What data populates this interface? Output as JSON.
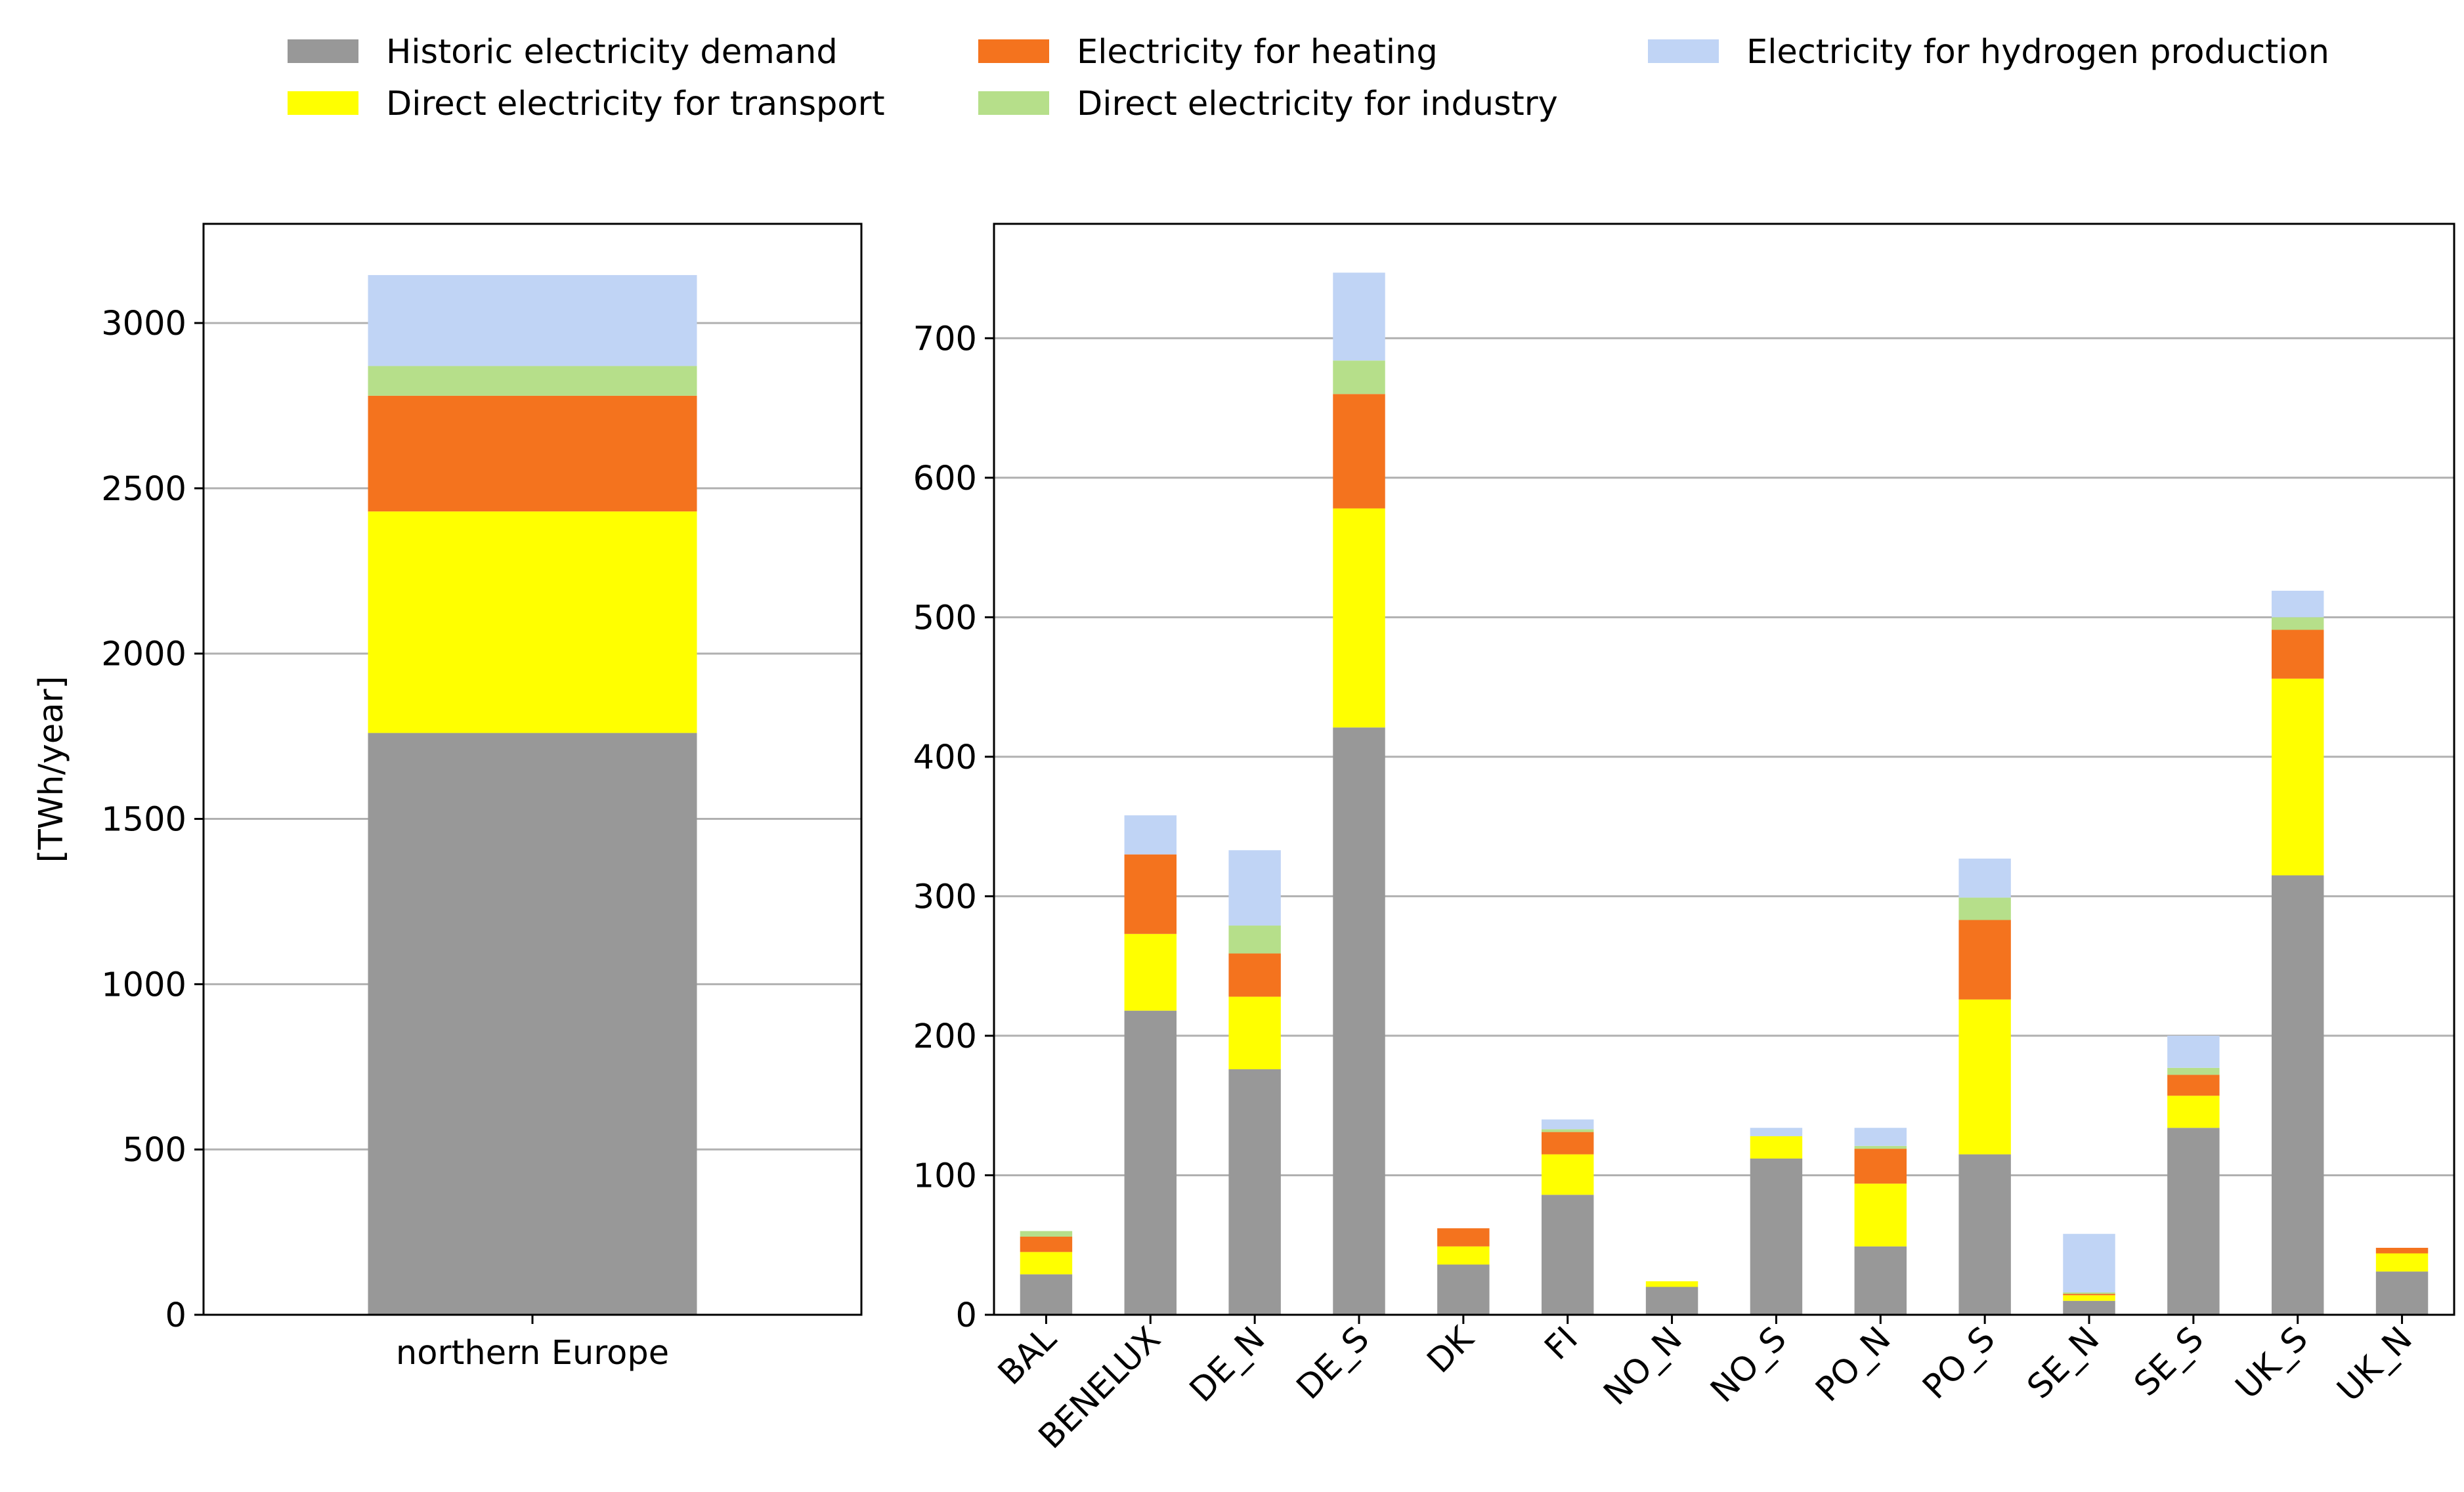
{
  "legend": {
    "entries": [
      {
        "label": "Historic electricity demand",
        "color": "#989898"
      },
      {
        "label": "Direct electricity for transport",
        "color": "#ffff00"
      },
      {
        "label": "Electricity for heating",
        "color": "#f4731e"
      },
      {
        "label": "Direct electricity for industry",
        "color": "#b6df8a"
      },
      {
        "label": "Electricity for hydrogen production",
        "color": "#c0d4f5"
      }
    ]
  },
  "chart_data": [
    {
      "type": "bar",
      "stacked": true,
      "title": "",
      "xlabel": "",
      "ylabel": "[TWh/year]",
      "ylim": [
        0,
        3300
      ],
      "yticks": [
        0,
        500,
        1000,
        1500,
        2000,
        2500,
        3000
      ],
      "grid": "horizontal",
      "categories": [
        "northern Europe"
      ],
      "series": [
        {
          "name": "Historic electricity demand",
          "color": "#989898",
          "values": [
            1760
          ]
        },
        {
          "name": "Direct electricity for transport",
          "color": "#ffff00",
          "values": [
            670
          ]
        },
        {
          "name": "Electricity for heating",
          "color": "#f4731e",
          "values": [
            350
          ]
        },
        {
          "name": "Direct electricity for industry",
          "color": "#b6df8a",
          "values": [
            90
          ]
        },
        {
          "name": "Electricity for hydrogen production",
          "color": "#c0d4f5",
          "values": [
            275
          ]
        }
      ]
    },
    {
      "type": "bar",
      "stacked": true,
      "title": "",
      "xlabel": "",
      "ylabel": "",
      "ylim": [
        0,
        782
      ],
      "yticks": [
        0,
        100,
        200,
        300,
        400,
        500,
        600,
        700
      ],
      "grid": "horizontal",
      "categories": [
        "BAL",
        "BENELUX",
        "DE_N",
        "DE_S",
        "DK",
        "FI",
        "NO_N",
        "NO_S",
        "PO_N",
        "PO_S",
        "SE_N",
        "SE_S",
        "UK_S",
        "UK_N"
      ],
      "series": [
        {
          "name": "Historic electricity demand",
          "color": "#989898",
          "values": [
            29,
            218,
            176,
            421,
            36,
            86,
            20,
            112,
            49,
            115,
            10,
            134,
            315,
            31
          ]
        },
        {
          "name": "Direct electricity for transport",
          "color": "#ffff00",
          "values": [
            16,
            55,
            52,
            157,
            13,
            29,
            4,
            16,
            45,
            111,
            4,
            23,
            141,
            13
          ]
        },
        {
          "name": "Electricity for heating",
          "color": "#f4731e",
          "values": [
            11,
            57,
            31,
            82,
            13,
            16,
            0,
            0,
            25,
            57,
            1,
            15,
            35,
            4
          ]
        },
        {
          "name": "Direct electricity for industry",
          "color": "#b6df8a",
          "values": [
            4,
            0,
            20,
            24,
            0,
            2,
            0,
            0,
            2,
            16,
            1,
            5,
            9,
            0
          ]
        },
        {
          "name": "Electricity for hydrogen production",
          "color": "#c0d4f5",
          "values": [
            0,
            28,
            54,
            63,
            0,
            7,
            0,
            6,
            13,
            28,
            42,
            23,
            19,
            0
          ]
        }
      ]
    }
  ]
}
